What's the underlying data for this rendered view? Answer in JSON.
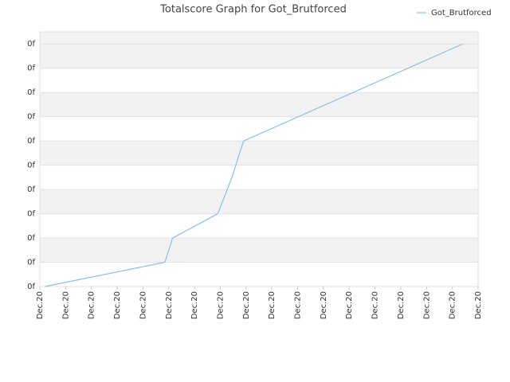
{
  "chart_data": {
    "type": "line",
    "title": "Totalscore Graph for Got_Brutforced",
    "x": [
      0.2,
      4.85,
      5.15,
      6.9,
      7.45,
      7.9,
      16.4
    ],
    "series": [
      {
        "name": "Got_Brutforced",
        "color": "#88c0eb",
        "values": [
          0,
          1,
          2,
          3,
          4.5,
          6,
          10
        ]
      }
    ],
    "xlim": [
      0,
      17
    ],
    "xticks": [
      {
        "value": 0,
        "label": "Dec.20"
      },
      {
        "value": 1,
        "label": "Dec.20"
      },
      {
        "value": 2,
        "label": "Dec.20"
      },
      {
        "value": 3,
        "label": "Dec.20"
      },
      {
        "value": 4,
        "label": "Dec.20"
      },
      {
        "value": 5,
        "label": "Dec.20"
      },
      {
        "value": 6,
        "label": "Dec.20"
      },
      {
        "value": 7,
        "label": "Dec.20"
      },
      {
        "value": 8,
        "label": "Dec.20"
      },
      {
        "value": 9,
        "label": "Dec.20"
      },
      {
        "value": 10,
        "label": "Dec.20"
      },
      {
        "value": 11,
        "label": "Dec.20"
      },
      {
        "value": 12,
        "label": "Dec.20"
      },
      {
        "value": 13,
        "label": "Dec.20"
      },
      {
        "value": 14,
        "label": "Dec.20"
      },
      {
        "value": 15,
        "label": "Dec.20"
      },
      {
        "value": 16,
        "label": "Dec.20"
      },
      {
        "value": 17,
        "label": "Dec.20"
      }
    ],
    "ylim": [
      0,
      10.5
    ],
    "yticks": [
      {
        "value": 0,
        "label": "0f"
      },
      {
        "value": 1,
        "label": "0f"
      },
      {
        "value": 2,
        "label": "0f"
      },
      {
        "value": 3,
        "label": "0f"
      },
      {
        "value": 4,
        "label": "0f"
      },
      {
        "value": 5,
        "label": "0f"
      },
      {
        "value": 6,
        "label": "0f"
      },
      {
        "value": 7,
        "label": "0f"
      },
      {
        "value": 8,
        "label": "0f"
      },
      {
        "value": 9,
        "label": "0f"
      },
      {
        "value": 10,
        "label": "0f"
      }
    ],
    "grid": true,
    "legend": "top-right"
  }
}
